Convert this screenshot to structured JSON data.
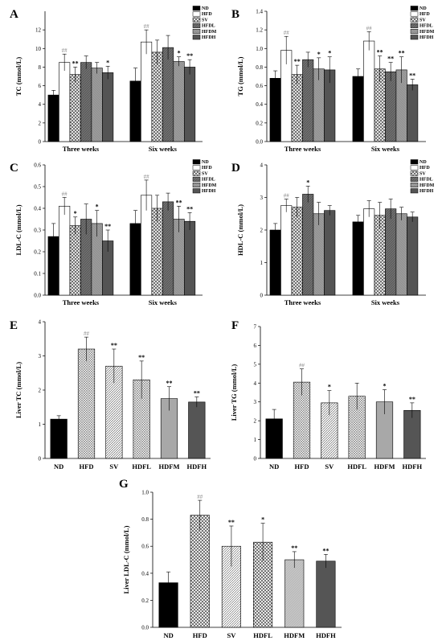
{
  "panels": [
    {
      "letter": "A",
      "type": "bar",
      "ylabel": "TC (mmol/L)",
      "ylim": [
        0,
        14
      ],
      "yticks": [
        0,
        2,
        4,
        6,
        8,
        10,
        12
      ],
      "groups": [
        "Three weeks",
        "Six weeks"
      ],
      "legend": [
        "ND",
        "HFD",
        "SV",
        "HFDL",
        "HFDM",
        "HFDH"
      ],
      "values": [
        [
          5.0,
          8.5,
          7.2,
          8.5,
          7.9,
          7.4
        ],
        [
          6.5,
          10.7,
          9.6,
          10.1,
          8.6,
          8.0
        ]
      ],
      "errors": [
        [
          0.5,
          0.9,
          0.8,
          0.7,
          0.6,
          0.7
        ],
        [
          1.4,
          1.3,
          1.3,
          1.3,
          0.5,
          0.8
        ]
      ],
      "marks": [
        [
          "",
          "##",
          "**",
          "",
          "",
          "*"
        ],
        [
          "",
          "##",
          "",
          "",
          "*",
          "**"
        ]
      ]
    },
    {
      "letter": "B",
      "type": "bar",
      "ylabel": "TG (mmol/L)",
      "ylim": [
        0,
        1.4
      ],
      "yticks": [
        0.0,
        0.2,
        0.4,
        0.6,
        0.8,
        1.0,
        1.2,
        1.4
      ],
      "groups": [
        "Three weeks",
        "Six weeks"
      ],
      "legend": [
        "ND",
        "HFD",
        "SV",
        "HFDL",
        "HFDM",
        "HFDH"
      ],
      "values": [
        [
          0.68,
          0.98,
          0.72,
          0.88,
          0.78,
          0.77
        ],
        [
          0.7,
          1.08,
          0.78,
          0.75,
          0.77,
          0.61
        ]
      ],
      "errors": [
        [
          0.08,
          0.15,
          0.1,
          0.08,
          0.12,
          0.14
        ],
        [
          0.08,
          0.1,
          0.14,
          0.1,
          0.14,
          0.06
        ]
      ],
      "marks": [
        [
          "",
          "##",
          "**",
          "",
          "*",
          "*"
        ],
        [
          "",
          "##",
          "**",
          "**",
          "**",
          "**"
        ]
      ]
    },
    {
      "letter": "C",
      "type": "bar",
      "ylabel": "LDL-C (mmol/L)",
      "ylim": [
        0,
        0.6
      ],
      "yticks": [
        0.0,
        0.1,
        0.2,
        0.3,
        0.4,
        0.5,
        0.6
      ],
      "groups": [
        "Three weeks",
        "Six weeks"
      ],
      "legend": [
        "ND",
        "HFD",
        "SV",
        "HFDL",
        "HFDM",
        "HFDH"
      ],
      "values": [
        [
          0.27,
          0.41,
          0.32,
          0.35,
          0.33,
          0.25
        ],
        [
          0.33,
          0.46,
          0.4,
          0.43,
          0.35,
          0.34
        ]
      ],
      "errors": [
        [
          0.06,
          0.04,
          0.04,
          0.07,
          0.06,
          0.05
        ],
        [
          0.06,
          0.07,
          0.06,
          0.04,
          0.06,
          0.04
        ]
      ],
      "marks": [
        [
          "",
          "##",
          "*",
          "",
          "*",
          "**"
        ],
        [
          "",
          "##",
          "",
          "",
          "**",
          "**"
        ]
      ]
    },
    {
      "letter": "D",
      "type": "bar",
      "ylabel": "HDL-C (mmol/L)",
      "ylim": [
        0,
        4
      ],
      "yticks": [
        0,
        1,
        2,
        3,
        4
      ],
      "groups": [
        "Three weeks",
        "Six weeks"
      ],
      "legend": [
        "ND",
        "HFD",
        "SV",
        "HFDL",
        "HFDM",
        "HFDH"
      ],
      "values": [
        [
          2.0,
          2.75,
          2.7,
          3.1,
          2.5,
          2.6
        ],
        [
          2.25,
          2.65,
          2.45,
          2.65,
          2.5,
          2.4
        ]
      ],
      "errors": [
        [
          0.2,
          0.2,
          0.3,
          0.25,
          0.35,
          0.15
        ],
        [
          0.2,
          0.25,
          0.4,
          0.3,
          0.2,
          0.15
        ]
      ],
      "marks": [
        [
          "",
          "##",
          "",
          "*",
          "",
          ""
        ],
        [
          "",
          "",
          "",
          "",
          "",
          ""
        ]
      ]
    },
    {
      "letter": "E",
      "type": "bar",
      "ylabel": "Liver TC (mmol/L)",
      "ylim": [
        0,
        4
      ],
      "yticks": [
        0,
        1,
        2,
        3,
        4
      ],
      "categories": [
        "ND",
        "HFD",
        "SV",
        "HDFL",
        "HDFM",
        "HDFH"
      ],
      "values": [
        1.15,
        3.2,
        2.7,
        2.3,
        1.75,
        1.65
      ],
      "errors": [
        0.1,
        0.35,
        0.5,
        0.55,
        0.35,
        0.15
      ],
      "marks": [
        "",
        "##",
        "**",
        "**",
        "**",
        "**"
      ]
    },
    {
      "letter": "F",
      "type": "bar",
      "ylabel": "Liver TG (mmol/L)",
      "ylim": [
        0,
        7
      ],
      "yticks": [
        0,
        1,
        2,
        3,
        4,
        5,
        6,
        7
      ],
      "categories": [
        "ND",
        "HFD",
        "SV",
        "HDFL",
        "HDFM",
        "HDFH"
      ],
      "values": [
        2.1,
        4.05,
        2.95,
        3.3,
        3.0,
        2.55
      ],
      "errors": [
        0.5,
        0.7,
        0.65,
        0.7,
        0.65,
        0.4
      ],
      "marks": [
        "",
        "##",
        "*",
        "",
        "*",
        "**"
      ]
    },
    {
      "letter": "G",
      "type": "bar",
      "ylabel": "Liver LDL-C (mmol/L)",
      "ylim": [
        0,
        1.0
      ],
      "yticks": [
        0.0,
        0.2,
        0.4,
        0.6,
        0.8,
        1.0
      ],
      "categories": [
        "ND",
        "HFD",
        "SV",
        "HDFL",
        "HDFM",
        "HDFH"
      ],
      "values": [
        0.33,
        0.83,
        0.6,
        0.63,
        0.5,
        0.49
      ],
      "errors": [
        0.08,
        0.11,
        0.15,
        0.14,
        0.06,
        0.05
      ],
      "marks": [
        "",
        "##",
        "**",
        "*",
        "**",
        "**"
      ]
    }
  ]
}
